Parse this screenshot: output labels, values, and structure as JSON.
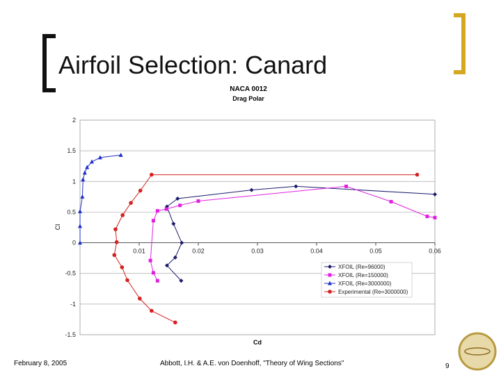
{
  "slide": {
    "title": "Airfoil Selection: Canard",
    "date": "February 8, 2005",
    "citation": "Abbott, I.H. & A.E. von Doenhoff, \"Theory of Wing Sections\"",
    "page_number": "9"
  },
  "chart_data": {
    "type": "line",
    "title": "NACA 0012",
    "subtitle": "Drag Polar",
    "x_label": "Cd",
    "y_label": "Cl",
    "xlim": [
      0,
      0.06
    ],
    "xticks": [
      0.01,
      0.02,
      0.03,
      0.04,
      0.05,
      0.06
    ],
    "ylim": [
      -1.5,
      2
    ],
    "yticks": [
      -1.5,
      -1,
      -0.5,
      0,
      0.5,
      1,
      1.5,
      2
    ],
    "grid": true,
    "legend": "lower-right",
    "series": [
      {
        "name": "XFOIL (Re=96000)",
        "color": "#1a1a6e",
        "marker": "diamond",
        "x": [
          0.0171,
          0.0147,
          0.0161,
          0.0172,
          0.0158,
          0.0147,
          0.0165,
          0.029,
          0.0365,
          0.06
        ],
        "values": [
          -0.62,
          -0.37,
          -0.24,
          0.0,
          0.31,
          0.59,
          0.72,
          0.86,
          0.92,
          0.79
        ]
      },
      {
        "name": "XFOIL (Re=150000)",
        "color": "#e020e0",
        "marker": "square",
        "x": [
          0.0131,
          0.0124,
          0.0119,
          0.0124,
          0.0131,
          0.0146,
          0.0169,
          0.02,
          0.045,
          0.0526,
          0.0587,
          0.06
        ],
        "values": [
          -0.62,
          -0.49,
          -0.29,
          0.36,
          0.52,
          0.55,
          0.61,
          0.68,
          0.92,
          0.67,
          0.43,
          0.41
        ]
      },
      {
        "name": "XFOIL (Re=3000000)",
        "color": "#1e2fc8",
        "marker": "triangle",
        "x": [
          0,
          0,
          0,
          0.0004,
          0.0005,
          0.0008,
          0.0012,
          0.002,
          0.0034,
          0.0069
        ],
        "values": [
          0,
          0.27,
          0.51,
          0.75,
          1.03,
          1.14,
          1.23,
          1.32,
          1.39,
          1.43
        ]
      },
      {
        "name": "Experimental (Re=3000000)",
        "color": "#d42020",
        "marker": "circle",
        "x": [
          0.0161,
          0.0121,
          0.0101,
          0.008,
          0.0071,
          0.0058,
          0.0062,
          0.006,
          0.0072,
          0.0086,
          0.0102,
          0.0121,
          0.057
        ],
        "values": [
          -1.3,
          -1.11,
          -0.91,
          -0.61,
          -0.4,
          -0.2,
          0.01,
          0.22,
          0.45,
          0.65,
          0.85,
          1.11,
          1.11
        ]
      }
    ]
  }
}
